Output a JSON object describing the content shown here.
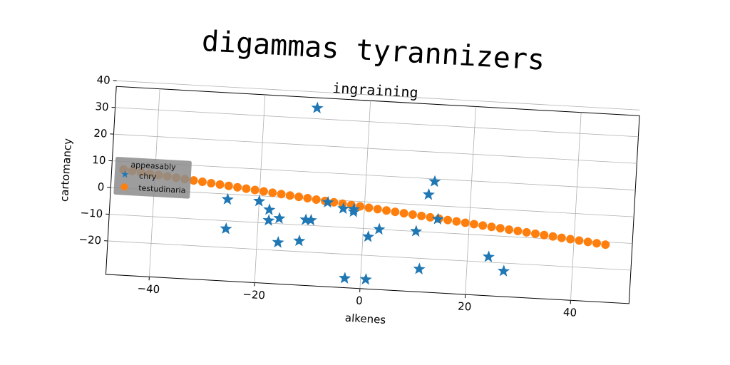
{
  "chart_data": {
    "type": "scatter",
    "suptitle": "digammas tyrannizers",
    "title": "ingraining",
    "xlabel": "alkenes",
    "ylabel": "cartomancy",
    "xlim": [
      -50,
      50
    ],
    "ylim": [
      -30,
      42
    ],
    "xticks": [
      -40,
      -20,
      0,
      20,
      40
    ],
    "yticks": [
      -20,
      -10,
      0,
      10,
      20,
      30,
      40
    ],
    "grid": true,
    "legend": {
      "title": "appeasably",
      "placement": "center-left"
    },
    "series": [
      {
        "name": "chry",
        "color": "#1f77b4",
        "marker": "star",
        "x": [
          -10,
          13,
          12,
          -26,
          -20,
          -18,
          -16,
          -18,
          -11,
          -10,
          -26,
          -16,
          -12,
          -7,
          -4,
          -2,
          -2,
          3,
          1,
          10,
          14,
          11,
          24,
          27,
          -3,
          1
        ],
        "y": [
          34,
          9,
          4,
          -2,
          -2,
          -5,
          -8,
          -9,
          -8,
          -8,
          -13,
          -17,
          -16,
          -1,
          -3,
          -3,
          -4,
          -10,
          -13,
          -10,
          -5,
          -24,
          -18,
          -23,
          -29,
          -29
        ]
      },
      {
        "name": "testudinaria",
        "color": "#ff7f0e",
        "marker": "circle",
        "x_start": -46,
        "x_end": 46,
        "y_start": 7,
        "y_end": -11,
        "n": 56
      }
    ]
  }
}
